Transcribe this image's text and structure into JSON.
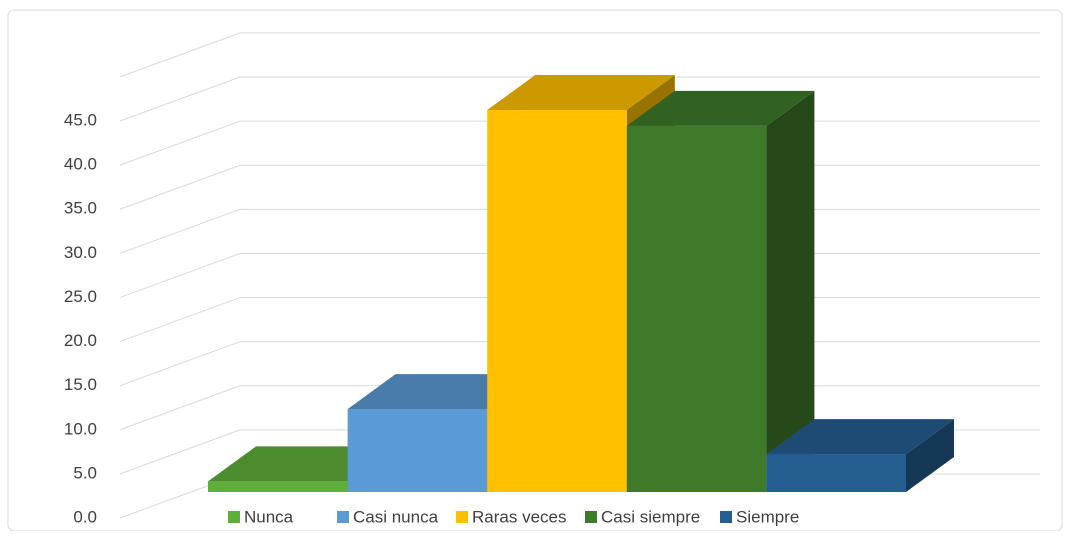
{
  "chart_data": {
    "type": "bar3d",
    "categories": [
      "Nunca",
      "Casi nunca",
      "Raras veces",
      "Casi siempre",
      "Siempre"
    ],
    "values": [
      1.2,
      9.4,
      43.3,
      41.5,
      4.3
    ],
    "colors": [
      "#5fae3a",
      "#5b9bd5",
      "#ffc000",
      "#3f7a2a",
      "#255e91"
    ],
    "ylim": [
      0,
      50
    ],
    "yticks": [
      {
        "value": 0,
        "label": "0.0"
      },
      {
        "value": 5,
        "label": "5.0"
      },
      {
        "value": 10,
        "label": "10.0"
      },
      {
        "value": 15,
        "label": "15.0"
      },
      {
        "value": 20,
        "label": "20.0"
      },
      {
        "value": 25,
        "label": "25.0"
      },
      {
        "value": 30,
        "label": "30.0"
      },
      {
        "value": 35,
        "label": "35.0"
      },
      {
        "value": 40,
        "label": "40.0"
      },
      {
        "value": 45,
        "label": "45.0"
      }
    ],
    "grid": true,
    "legend": "bottom"
  }
}
